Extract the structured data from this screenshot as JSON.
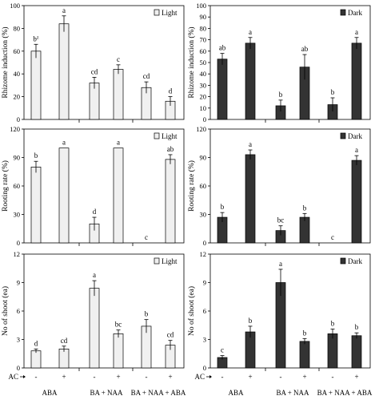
{
  "figure": {
    "ac_label": "AC",
    "groups": [
      "ABA",
      "BA + NAA",
      "BA + NAA + ABA"
    ],
    "ac_ticks": [
      "-",
      "+",
      "-",
      "+",
      "-",
      "+"
    ]
  },
  "chart_data": [
    {
      "type": "bar",
      "panel": "rhizome-light",
      "ylabel": "Rhizome induction (%)",
      "ylim": [
        0,
        100
      ],
      "yticks": [
        0,
        20,
        40,
        60,
        80,
        100
      ],
      "legend": "Light",
      "legend_color": "#f0f0f0",
      "bar_color": "#f0f0f0",
      "categories": [
        "ABA -",
        "ABA +",
        "BA + NAA -",
        "BA + NAA +",
        "BA + NAA + ABA -",
        "BA + NAA + ABA +"
      ],
      "values": [
        60,
        84,
        32,
        44,
        28,
        16
      ],
      "errors": [
        6,
        7,
        5,
        4,
        5,
        4
      ],
      "letters": [
        "bz",
        "a",
        "cd",
        "c",
        "cd",
        "d"
      ],
      "superscript_first": true
    },
    {
      "type": "bar",
      "panel": "rhizome-dark",
      "ylabel": "Rhizome induction (%)",
      "ylim": [
        0,
        100
      ],
      "yticks": [
        0,
        10,
        20,
        30,
        40,
        50,
        60,
        70,
        80,
        90,
        100
      ],
      "legend": "Dark",
      "legend_color": "#333333",
      "bar_color": "#333333",
      "categories": [
        "ABA -",
        "ABA +",
        "BA + NAA -",
        "BA + NAA +",
        "BA + NAA + ABA -",
        "BA + NAA + ABA +"
      ],
      "values": [
        53,
        67,
        12,
        46,
        13,
        67
      ],
      "errors": [
        5,
        5,
        5,
        11,
        6,
        5
      ],
      "letters": [
        "ab",
        "a",
        "b",
        "ab",
        "b",
        "a"
      ]
    },
    {
      "type": "bar",
      "panel": "rooting-light",
      "ylabel": "Rooting rate (%)",
      "ylim": [
        0,
        120
      ],
      "yticks": [
        0,
        30,
        60,
        90,
        120
      ],
      "legend": "Light",
      "legend_color": "#f0f0f0",
      "bar_color": "#f0f0f0",
      "categories": [
        "ABA -",
        "ABA +",
        "BA + NAA -",
        "BA + NAA +",
        "BA + NAA + ABA -",
        "BA + NAA + ABA +"
      ],
      "values": [
        80,
        100,
        20,
        100,
        0,
        88
      ],
      "errors": [
        6,
        0,
        7,
        0,
        0,
        5
      ],
      "letters": [
        "b",
        "a",
        "d",
        "a",
        "c",
        "ab"
      ]
    },
    {
      "type": "bar",
      "panel": "rooting-dark",
      "ylabel": "Rooting rate (%)",
      "ylim": [
        0,
        120
      ],
      "yticks": [
        0,
        30,
        60,
        90,
        120
      ],
      "legend": "Dark",
      "legend_color": "#333333",
      "bar_color": "#333333",
      "categories": [
        "ABA -",
        "ABA +",
        "BA + NAA -",
        "BA + NAA +",
        "BA + NAA + ABA -",
        "BA + NAA + ABA +"
      ],
      "values": [
        27,
        93,
        13,
        27,
        0,
        87
      ],
      "errors": [
        5,
        5,
        5,
        4,
        0,
        5
      ],
      "letters": [
        "b",
        "a",
        "bc",
        "b",
        "c",
        "a"
      ]
    },
    {
      "type": "bar",
      "panel": "shoot-light",
      "ylabel": "No of shoot (ea)",
      "ylim": [
        0,
        12
      ],
      "yticks": [
        0,
        3,
        6,
        9,
        12
      ],
      "legend": "Light",
      "legend_color": "#f0f0f0",
      "bar_color": "#f0f0f0",
      "categories": [
        "ABA -",
        "ABA +",
        "BA + NAA -",
        "BA + NAA +",
        "BA + NAA + ABA -",
        "BA + NAA + ABA +"
      ],
      "values": [
        1.8,
        2.0,
        8.4,
        3.6,
        4.4,
        2.4
      ],
      "errors": [
        0.2,
        0.3,
        0.8,
        0.4,
        0.7,
        0.5
      ],
      "letters": [
        "d",
        "cd",
        "a",
        "bc",
        "b",
        "cd"
      ]
    },
    {
      "type": "bar",
      "panel": "shoot-dark",
      "ylabel": "No of shoot (ea)",
      "ylim": [
        0,
        12
      ],
      "yticks": [
        0,
        3,
        6,
        9,
        12
      ],
      "legend": "Dark",
      "legend_color": "#333333",
      "bar_color": "#333333",
      "categories": [
        "ABA -",
        "ABA +",
        "BA + NAA -",
        "BA + NAA +",
        "BA + NAA + ABA -",
        "BA + NAA + ABA +"
      ],
      "values": [
        1.1,
        3.8,
        9.0,
        2.8,
        3.6,
        3.4
      ],
      "errors": [
        0.2,
        0.6,
        1.4,
        0.3,
        0.5,
        0.3
      ],
      "letters": [
        "c",
        "b",
        "a",
        "b",
        "b",
        "b"
      ]
    }
  ]
}
